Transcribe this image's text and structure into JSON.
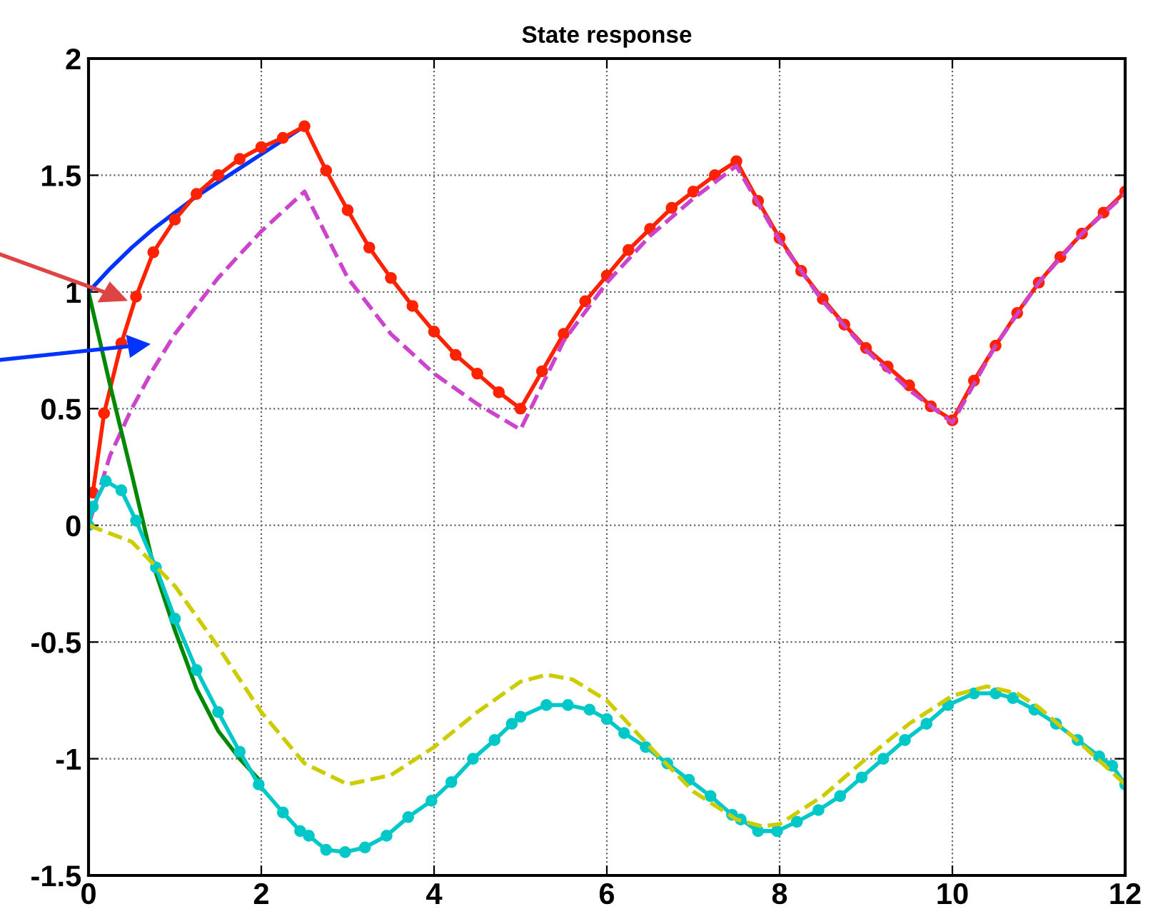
{
  "chart_data": {
    "type": "line",
    "title": "State response",
    "xlim": [
      0,
      12
    ],
    "xticks": [
      0,
      2,
      4,
      6,
      8,
      10,
      12
    ],
    "ylim": [
      -1.5,
      2
    ],
    "yticks": [
      -1.5,
      -1,
      -0.5,
      0,
      0.5,
      1,
      1.5,
      2
    ],
    "grid": true,
    "series": [
      {
        "color": "#0033ff",
        "line_style": "solid",
        "marker": "none",
        "x": [
          0,
          0.25,
          0.5,
          0.75,
          1,
          1.25,
          1.5,
          1.75,
          2,
          2.25,
          2.5
        ],
        "values": [
          1.0,
          1.1,
          1.19,
          1.27,
          1.34,
          1.41,
          1.47,
          1.53,
          1.59,
          1.65,
          1.71
        ]
      },
      {
        "color": "#ff2200",
        "line_style": "solid",
        "marker": "circle",
        "x": [
          0.05,
          0.18,
          0.38,
          0.55,
          0.75,
          1.0,
          1.25,
          1.5,
          1.75,
          2.0,
          2.25,
          2.5,
          2.75,
          3.0,
          3.25,
          3.5,
          3.75,
          4.0,
          4.25,
          4.5,
          4.75,
          5.0,
          5.25,
          5.5,
          5.75,
          6.0,
          6.25,
          6.5,
          6.75,
          7.0,
          7.25,
          7.5,
          7.75,
          8.0,
          8.25,
          8.5,
          8.75,
          9.0,
          9.25,
          9.5,
          9.75,
          10.0,
          10.25,
          10.5,
          10.75,
          11.0,
          11.25,
          11.5,
          11.75,
          12.0
        ],
        "values": [
          0.14,
          0.48,
          0.78,
          0.98,
          1.17,
          1.31,
          1.42,
          1.5,
          1.57,
          1.62,
          1.66,
          1.71,
          1.52,
          1.35,
          1.19,
          1.06,
          0.94,
          0.83,
          0.73,
          0.65,
          0.57,
          0.5,
          0.66,
          0.82,
          0.96,
          1.07,
          1.18,
          1.27,
          1.36,
          1.43,
          1.5,
          1.56,
          1.39,
          1.23,
          1.09,
          0.97,
          0.86,
          0.76,
          0.68,
          0.6,
          0.51,
          0.45,
          0.62,
          0.77,
          0.91,
          1.04,
          1.15,
          1.25,
          1.34,
          1.43
        ]
      },
      {
        "color": "#cc44cc",
        "line_style": "dashed",
        "marker": "none",
        "x": [
          0,
          0.25,
          0.5,
          0.75,
          1,
          1.5,
          2,
          2.5,
          3,
          3.5,
          4,
          4.5,
          5,
          5.5,
          6,
          6.5,
          7,
          7.5,
          8,
          8.5,
          9,
          9.5,
          10,
          10.5,
          11,
          11.5,
          12
        ],
        "values": [
          0.0,
          0.3,
          0.5,
          0.67,
          0.82,
          1.06,
          1.26,
          1.43,
          1.06,
          0.82,
          0.65,
          0.52,
          0.41,
          0.79,
          1.04,
          1.24,
          1.4,
          1.54,
          1.22,
          0.96,
          0.75,
          0.58,
          0.44,
          0.77,
          1.04,
          1.25,
          1.42
        ]
      },
      {
        "color": "#008800",
        "line_style": "solid",
        "marker": "none",
        "x": [
          0,
          0.25,
          0.5,
          0.75,
          1.0,
          1.25,
          1.5,
          1.75,
          2.0
        ],
        "values": [
          1.0,
          0.6,
          0.22,
          -0.17,
          -0.45,
          -0.7,
          -0.88,
          -1.0,
          -1.1
        ]
      },
      {
        "color": "#00c8c8",
        "line_style": "solid",
        "marker": "circle",
        "x": [
          0,
          0.05,
          0.2,
          0.38,
          0.55,
          0.78,
          1.0,
          1.25,
          1.5,
          1.75,
          1.97,
          2.25,
          2.45,
          2.55,
          2.75,
          2.97,
          3.2,
          3.45,
          3.7,
          3.97,
          4.2,
          4.45,
          4.7,
          4.9,
          5.0,
          5.3,
          5.55,
          5.8,
          6.0,
          6.2,
          6.45,
          6.7,
          6.95,
          7.2,
          7.45,
          7.55,
          7.75,
          7.97,
          8.2,
          8.45,
          8.7,
          8.95,
          9.2,
          9.45,
          9.7,
          9.95,
          10.25,
          10.5,
          10.7,
          10.95,
          11.2,
          11.45,
          11.7,
          11.85,
          12.0
        ],
        "values": [
          0.0,
          0.08,
          0.19,
          0.15,
          0.02,
          -0.18,
          -0.4,
          -0.62,
          -0.8,
          -0.97,
          -1.11,
          -1.23,
          -1.31,
          -1.33,
          -1.39,
          -1.4,
          -1.38,
          -1.33,
          -1.25,
          -1.18,
          -1.1,
          -1.0,
          -0.92,
          -0.85,
          -0.82,
          -0.77,
          -0.77,
          -0.79,
          -0.83,
          -0.89,
          -0.95,
          -1.02,
          -1.09,
          -1.16,
          -1.24,
          -1.26,
          -1.31,
          -1.31,
          -1.27,
          -1.22,
          -1.16,
          -1.08,
          -1.0,
          -0.92,
          -0.85,
          -0.77,
          -0.72,
          -0.72,
          -0.74,
          -0.79,
          -0.85,
          -0.92,
          -0.99,
          -1.03,
          -1.11
        ]
      },
      {
        "color": "#cccc00",
        "line_style": "dashed",
        "marker": "none",
        "x": [
          0,
          0.5,
          1,
          1.5,
          2,
          2.5,
          3,
          3.5,
          4,
          4.5,
          5,
          5.3,
          5.6,
          6,
          6.5,
          7,
          7.5,
          7.8,
          8,
          8.5,
          9,
          9.5,
          10,
          10.4,
          10.75,
          11,
          11.5,
          12
        ],
        "values": [
          0.0,
          -0.07,
          -0.26,
          -0.52,
          -0.8,
          -1.02,
          -1.11,
          -1.07,
          -0.95,
          -0.8,
          -0.67,
          -0.64,
          -0.66,
          -0.75,
          -0.95,
          -1.14,
          -1.26,
          -1.29,
          -1.28,
          -1.16,
          -1.0,
          -0.85,
          -0.73,
          -0.69,
          -0.72,
          -0.78,
          -0.94,
          -1.11
        ]
      }
    ]
  }
}
